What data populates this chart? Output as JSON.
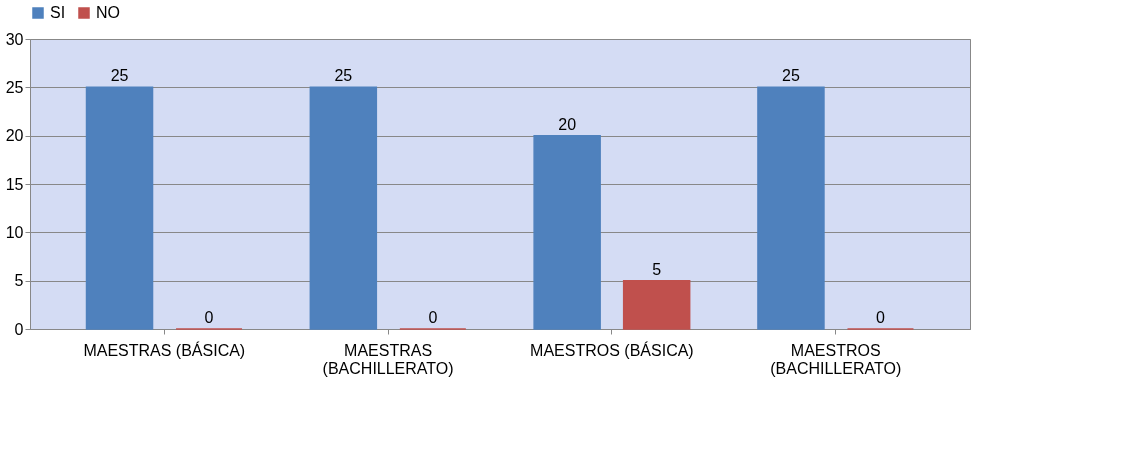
{
  "chart_data": {
    "type": "bar",
    "categories": [
      "MAESTRAS (BÁSICA)",
      "MAESTRAS (BACHILLERATO)",
      "MAESTROS (BÁSICA)",
      "MAESTROS (BACHILLERATO)"
    ],
    "series": [
      {
        "name": "SI",
        "color": "#4f81bd",
        "values": [
          25,
          25,
          20,
          25
        ]
      },
      {
        "name": "NO",
        "color": "#c0504d",
        "values": [
          0,
          0,
          5,
          0
        ]
      }
    ],
    "ylim": [
      0,
      30
    ],
    "yticks": [
      0,
      5,
      10,
      15,
      20,
      25,
      30
    ],
    "grid": "y",
    "legend": "top",
    "data_labels": true
  }
}
